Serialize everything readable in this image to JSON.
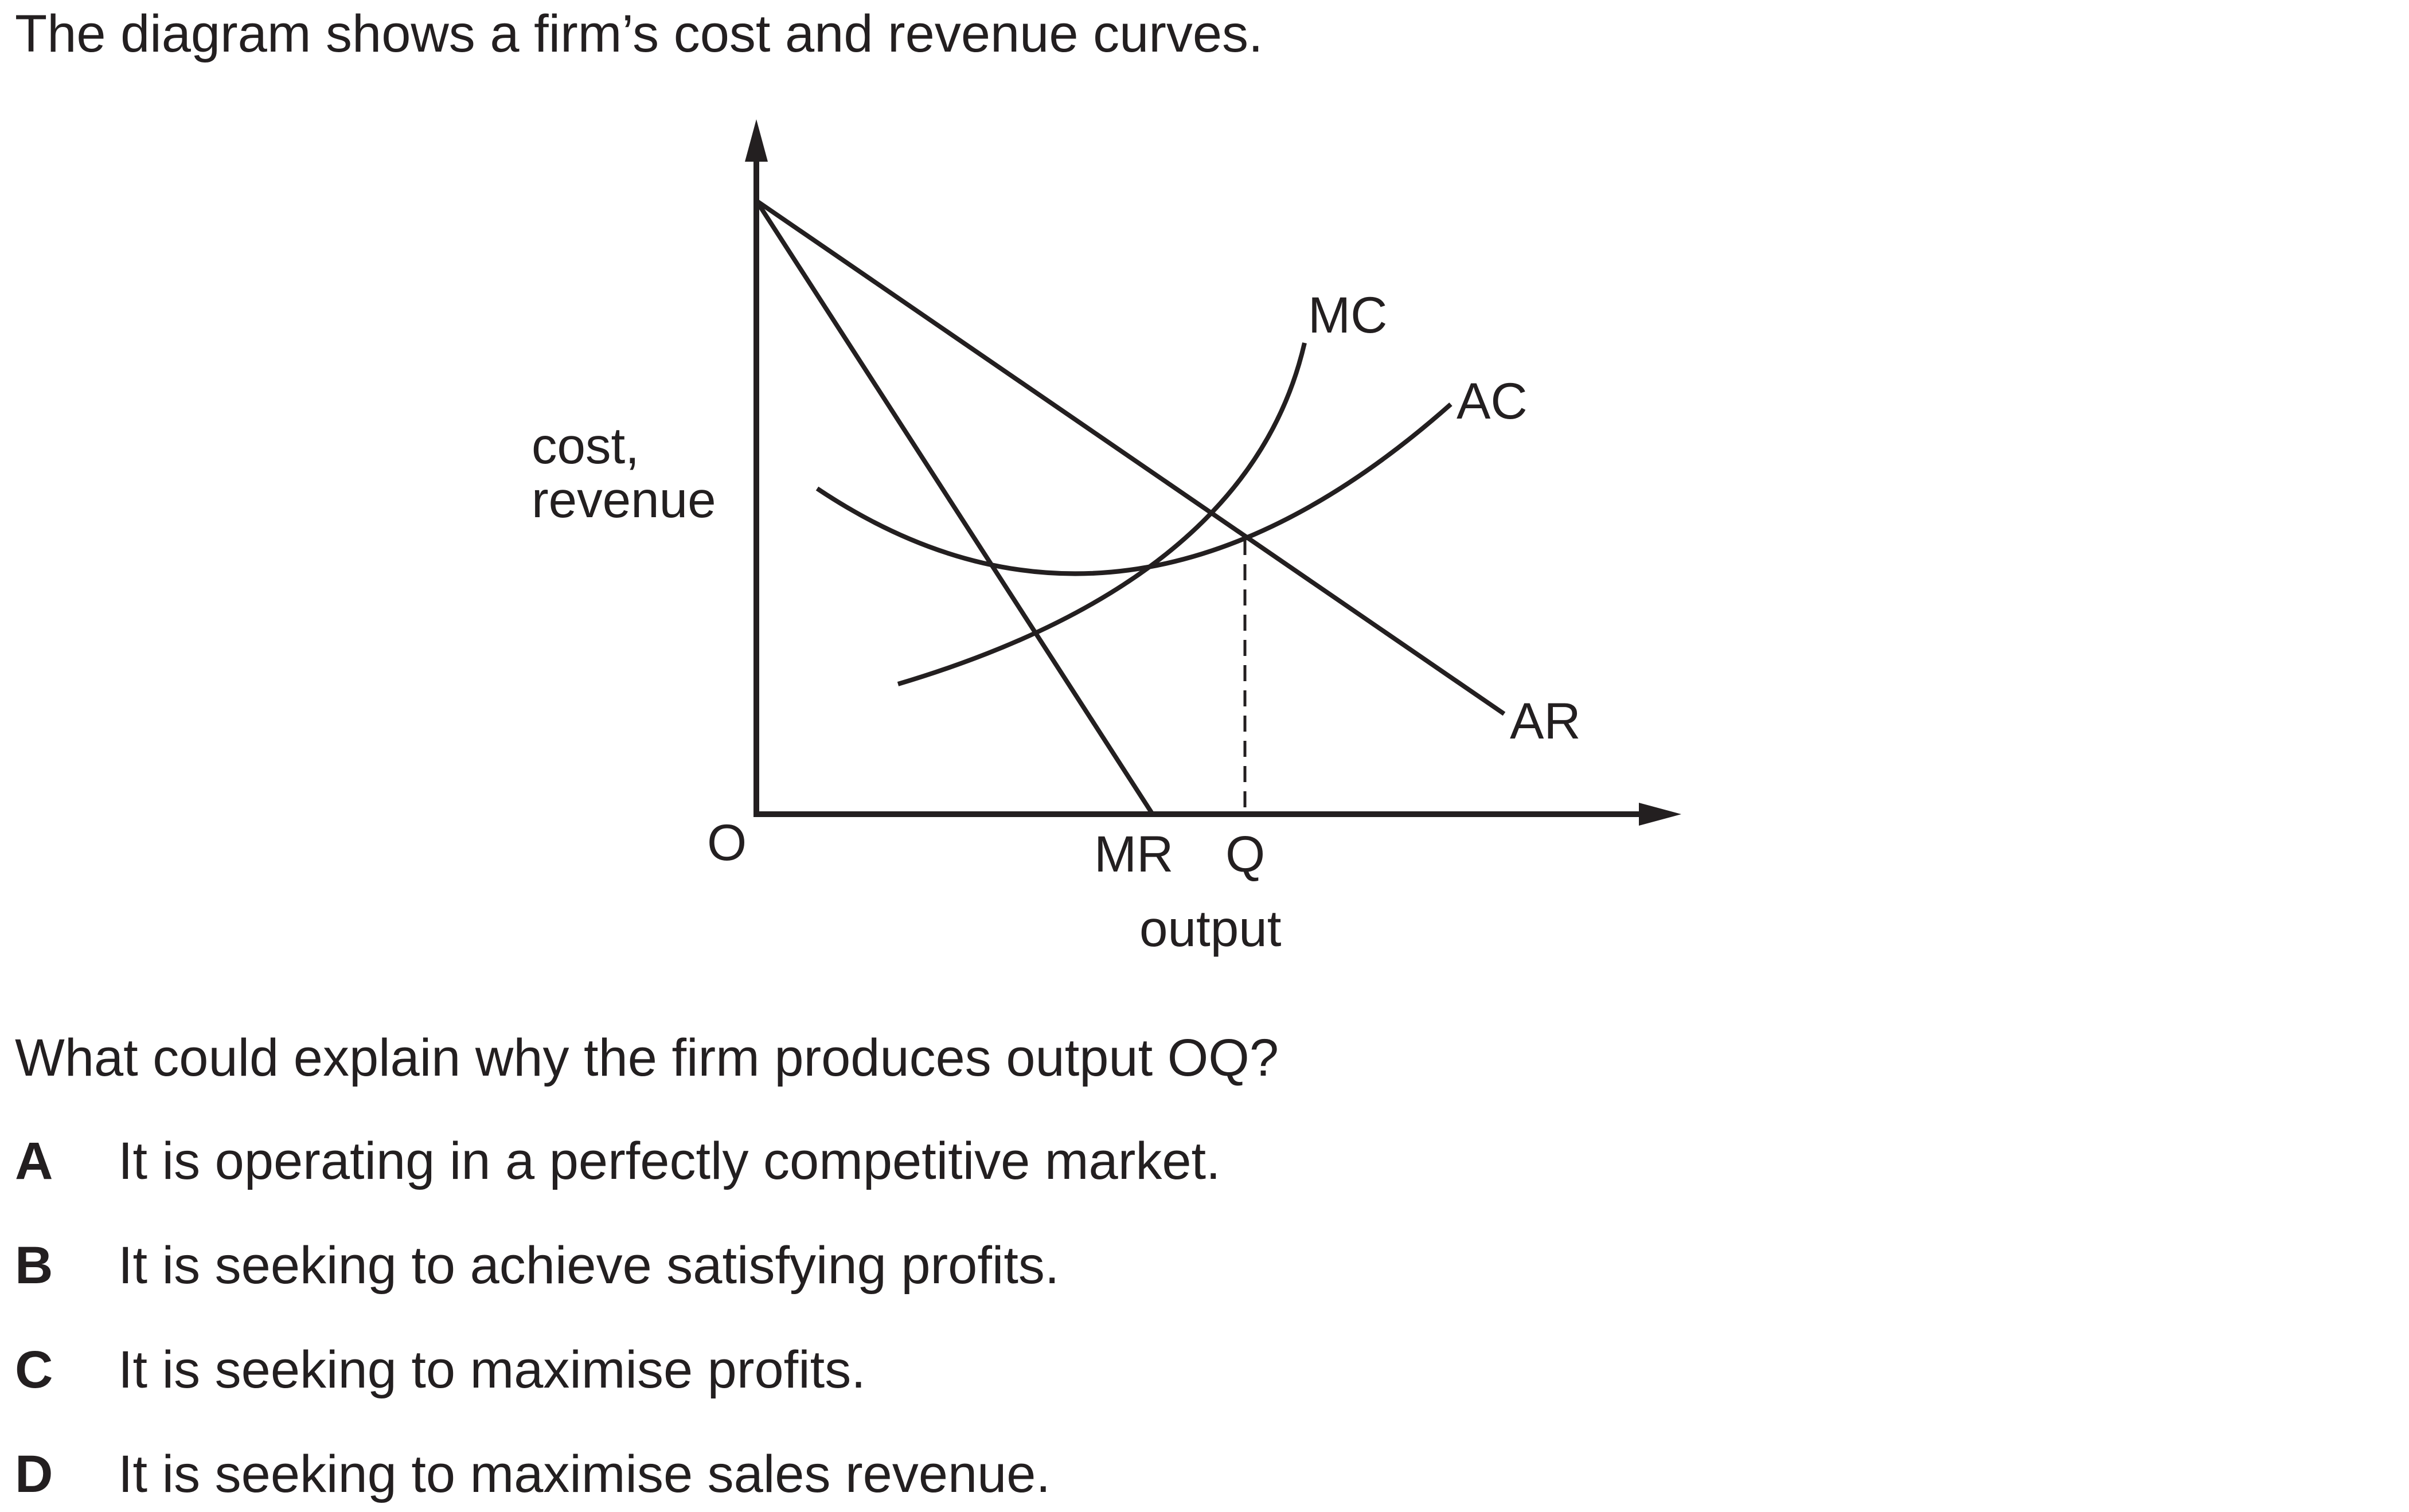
{
  "intro": "The diagram shows a firm’s cost and revenue curves.",
  "diagram": {
    "y_axis_label_line1": "cost,",
    "y_axis_label_line2": "revenue",
    "x_axis_label": "output",
    "origin_label": "O",
    "mr_intercept_label": "MR",
    "q_label": "Q",
    "curve_labels": {
      "mc": "MC",
      "ac": "AC",
      "ar": "AR"
    }
  },
  "question": "What could explain why the firm produces output OQ?",
  "options": [
    {
      "letter": "A",
      "text": "It is operating in a perfectly competitive market."
    },
    {
      "letter": "B",
      "text": "It is seeking to achieve satisfying profits."
    },
    {
      "letter": "C",
      "text": "It is seeking to maximise profits."
    },
    {
      "letter": "D",
      "text": "It is seeking to maximise sales revenue."
    }
  ]
}
